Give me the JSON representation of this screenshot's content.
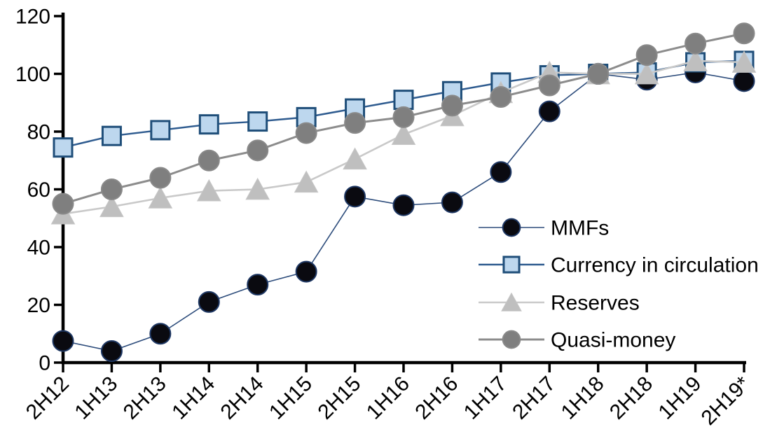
{
  "chart_data": {
    "type": "line",
    "title": "",
    "xlabel": "",
    "ylabel": "",
    "categories": [
      "2H12",
      "1H13",
      "2H13",
      "1H14",
      "2H14",
      "1H15",
      "2H15",
      "1H16",
      "2H16",
      "1H17",
      "2H17",
      "1H18",
      "2H18",
      "1H19",
      "2H19*"
    ],
    "series": [
      {
        "name": "MMFs",
        "marker": "circle",
        "marker_fill": "#0a0a10",
        "marker_stroke": "#1f3864",
        "line_color": "#2e4d7c",
        "line_width": 1.6,
        "marker_size": 29,
        "values": [
          7.5,
          4,
          10,
          21,
          27,
          31.5,
          57.5,
          54.5,
          55.5,
          66,
          87,
          100,
          98,
          100.5,
          97.5
        ]
      },
      {
        "name": "Currency in circulation",
        "marker": "square",
        "marker_fill": "#bdd7ee",
        "marker_stroke": "#1f4e79",
        "line_color": "#2e5b8f",
        "line_width": 2.5,
        "marker_size": 26,
        "values": [
          74.5,
          78.5,
          80.5,
          82.5,
          83.5,
          85,
          88,
          91,
          94,
          97,
          99.5,
          100,
          100.5,
          104,
          104.5
        ]
      },
      {
        "name": "Reserves",
        "marker": "triangle",
        "marker_fill": "#bfbfbf",
        "marker_stroke": "#c6c6c6",
        "line_color": "#c9c9c9",
        "line_width": 2.6,
        "marker_size": 30,
        "values": [
          51.5,
          54,
          57,
          59.5,
          60,
          62.5,
          70.5,
          79,
          85.5,
          93.5,
          100.5,
          100,
          100,
          104.5,
          104
        ]
      },
      {
        "name": "Quasi-money",
        "marker": "circle",
        "marker_fill": "#7f7f7f",
        "marker_stroke": "#898989",
        "line_color": "#8c8c8c",
        "line_width": 3,
        "marker_size": 29,
        "values": [
          55,
          60,
          64,
          70,
          73.5,
          79.5,
          83,
          85,
          89,
          92,
          96,
          100,
          106.5,
          110.5,
          114
        ]
      }
    ],
    "ylim": [
      0,
      120
    ],
    "yticks": [
      0,
      20,
      40,
      60,
      80,
      100,
      120
    ],
    "grid": false,
    "legend_position": "inside-right",
    "legend_order": [
      "MMFs",
      "Currency in circulation",
      "Reserves",
      "Quasi-money"
    ],
    "axis_color": "#000000",
    "background": "#ffffff"
  }
}
